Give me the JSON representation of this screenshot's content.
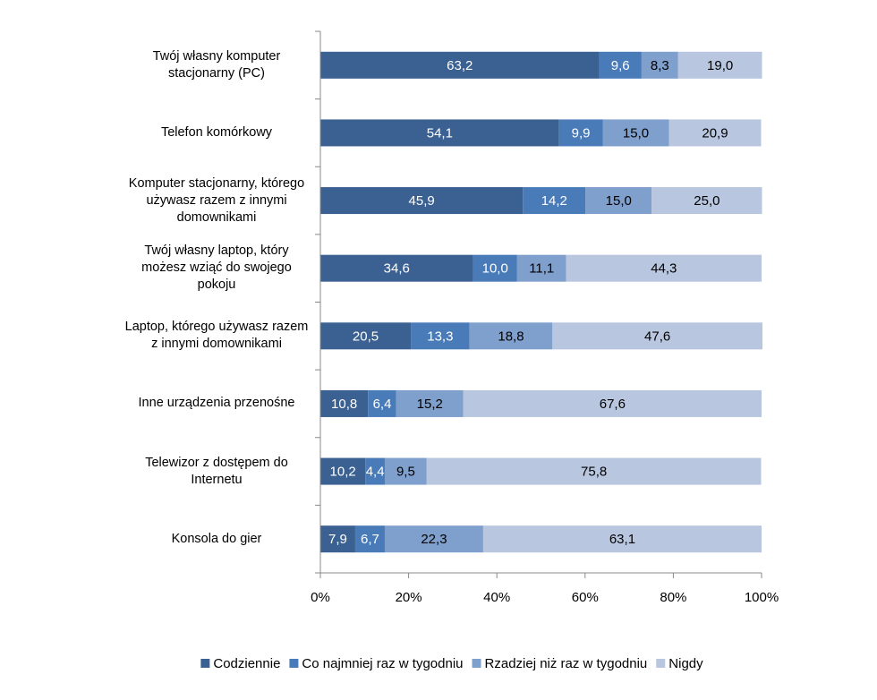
{
  "chart_data": {
    "type": "stacked-bar-horizontal",
    "categories": [
      "Twój własny komputer stacjonarny (PC)",
      "Telefon komórkowy",
      "Komputer stacjonarny, którego używasz razem z innymi domownikami",
      "Twój własny laptop, który możesz wziąć do swojego pokoju",
      "Laptop, którego używasz razem z innymi domownikami",
      "Inne urządzenia przenośne",
      "Telewizor z dostępem do Internetu",
      "Konsola do gier"
    ],
    "series": [
      {
        "name": "Codziennie",
        "color": "#3b6192",
        "label_color": "#ffffff",
        "values": [
          63.2,
          54.1,
          45.9,
          34.6,
          20.5,
          10.8,
          10.2,
          7.9
        ],
        "value_labels": [
          "63,2",
          "54,1",
          "45,9",
          "34,6",
          "20,5",
          "10,8",
          "10,2",
          "7,9"
        ]
      },
      {
        "name": "Co najmniej raz w tygodniu",
        "color": "#4a7bb9",
        "label_color": "#ffffff",
        "values": [
          9.6,
          9.9,
          14.2,
          10.0,
          13.3,
          6.4,
          4.4,
          6.7
        ],
        "value_labels": [
          "9,6",
          "9,9",
          "14,2",
          "10,0",
          "13,3",
          "6,4",
          "4,4",
          "6,7"
        ]
      },
      {
        "name": "Rzadziej niż raz w tygodniu",
        "color": "#7f9fcc",
        "label_color": "#000000",
        "values": [
          8.3,
          15.0,
          15.0,
          11.1,
          18.8,
          15.2,
          9.5,
          22.3
        ],
        "value_labels": [
          "8,3",
          "15,0",
          "15,0",
          "11,1",
          "18,8",
          "15,2",
          "9,5",
          "22,3"
        ]
      },
      {
        "name": "Nigdy",
        "color": "#b8c6df",
        "label_color": "#000000",
        "values": [
          19.0,
          20.9,
          25.0,
          44.3,
          47.6,
          67.6,
          75.8,
          63.1
        ],
        "value_labels": [
          "19,0",
          "20,9",
          "25,0",
          "44,3",
          "47,6",
          "67,6",
          "75,8",
          "63,1"
        ]
      }
    ],
    "xlim": [
      0,
      100
    ],
    "xticks": [
      {
        "value": 0,
        "label": "0%"
      },
      {
        "value": 20,
        "label": "20%"
      },
      {
        "value": 40,
        "label": "40%"
      },
      {
        "value": 60,
        "label": "60%"
      },
      {
        "value": 80,
        "label": "80%"
      },
      {
        "value": 100,
        "label": "100%"
      }
    ],
    "legend": "bottom"
  }
}
